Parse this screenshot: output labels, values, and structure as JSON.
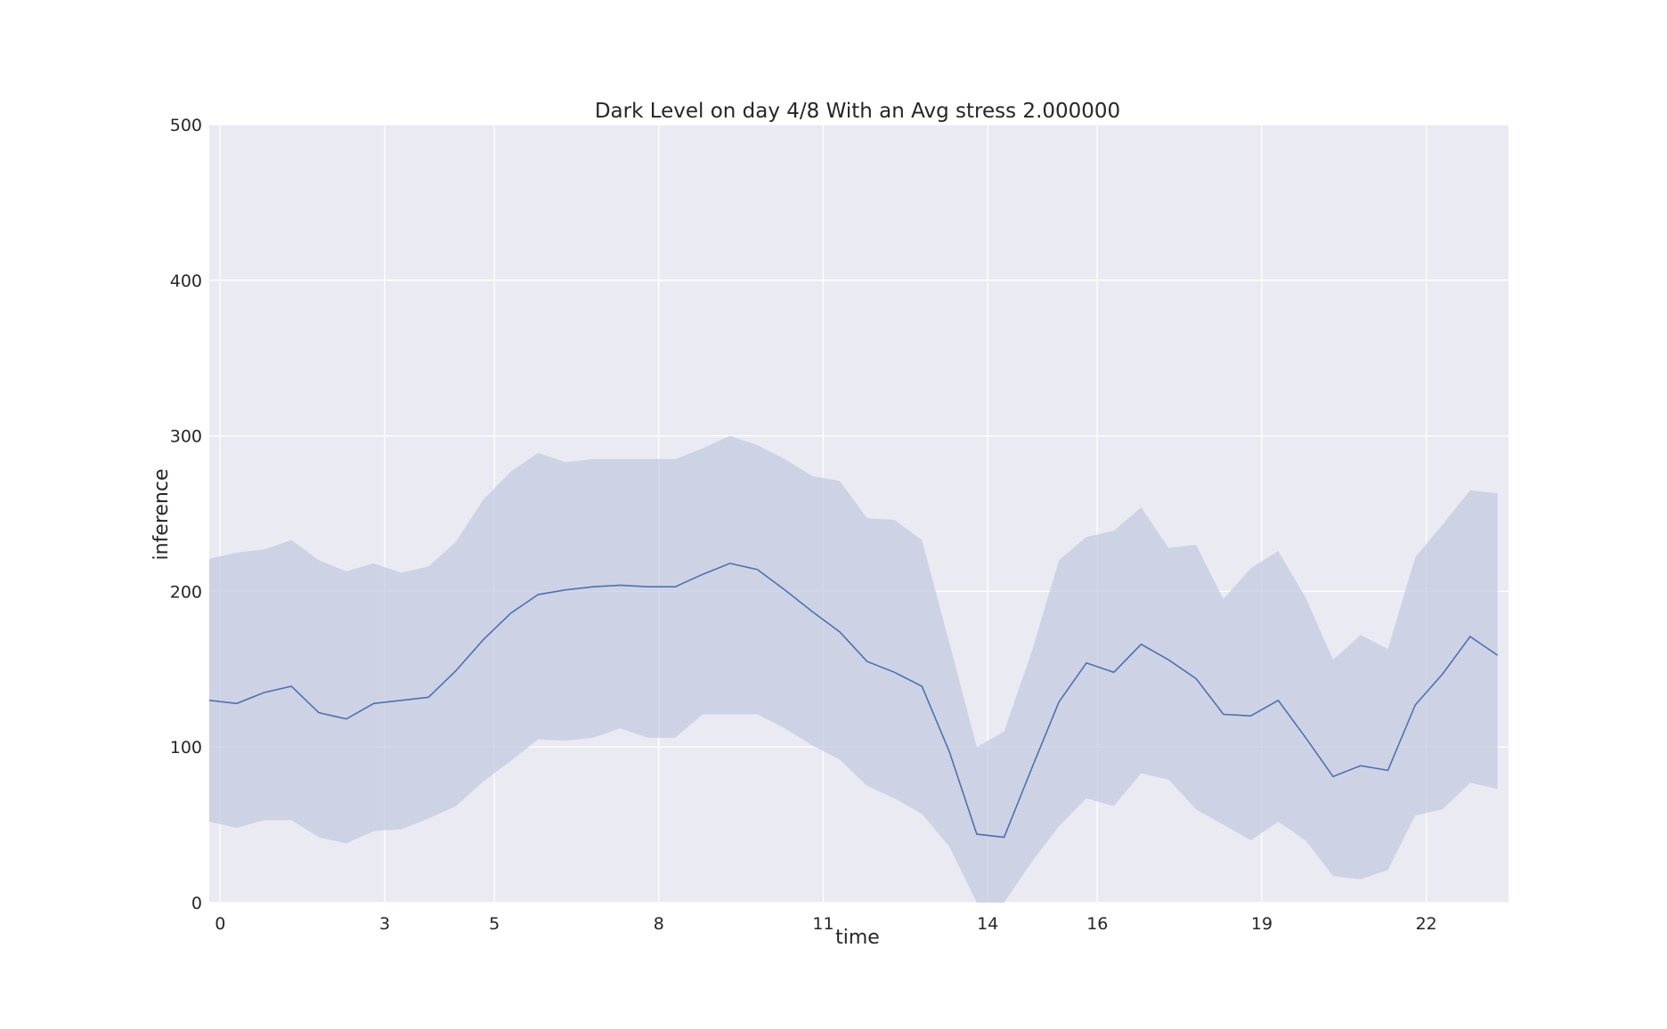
{
  "chart_data": {
    "type": "line",
    "title": "Dark Level on day 4/8 With an Avg stress 2.000000",
    "xlabel": "time",
    "ylabel": "inference",
    "xlim": [
      -0.2,
      23.5
    ],
    "ylim": [
      0,
      500
    ],
    "x_ticks": [
      0,
      3,
      5,
      8,
      11,
      14,
      16,
      19,
      22
    ],
    "y_ticks": [
      0,
      100,
      200,
      300,
      400,
      500
    ],
    "grid": true,
    "background": "#eaeaf2",
    "grid_color": "#ffffff",
    "line_color": "#4c72b0",
    "band_color": "#c3cbe0",
    "series": [
      {
        "x": [
          -0.2,
          0.3,
          0.8,
          1.3,
          1.8,
          2.3,
          2.8,
          3.3,
          3.8,
          4.3,
          4.8,
          5.3,
          5.8,
          6.3,
          6.8,
          7.3,
          7.8,
          8.3,
          8.8,
          9.3,
          9.8,
          10.3,
          10.8,
          11.3,
          11.8,
          12.3,
          12.8,
          13.3,
          13.8,
          14.3,
          14.8,
          15.3,
          15.8,
          16.3,
          16.8,
          17.3,
          17.8,
          18.3,
          18.8,
          19.3,
          19.8,
          20.3,
          20.8,
          21.3,
          21.8,
          22.3,
          22.8,
          23.3
        ],
        "values": [
          130,
          128,
          135,
          139,
          122,
          118,
          128,
          130,
          132,
          149,
          169,
          186,
          198,
          201,
          203,
          204,
          203,
          203,
          211,
          218,
          214,
          201,
          187,
          174,
          155,
          148,
          139,
          97,
          44,
          42,
          86,
          129,
          154,
          148,
          166,
          156,
          144,
          121,
          120,
          130,
          106,
          81,
          88,
          85,
          127,
          147,
          171,
          159
        ],
        "lower": [
          52,
          48,
          53,
          53,
          42,
          38,
          46,
          47,
          54,
          62,
          78,
          91,
          105,
          104,
          106,
          112,
          106,
          106,
          121,
          121,
          121,
          112,
          101,
          92,
          75,
          67,
          57,
          36,
          0,
          0,
          26,
          49,
          67,
          62,
          83,
          79,
          60,
          50,
          40,
          52,
          40,
          17,
          15,
          21,
          56,
          60,
          77,
          73
        ],
        "upper": [
          221,
          225,
          227,
          233,
          220,
          213,
          218,
          212,
          216,
          232,
          259,
          277,
          289,
          283,
          285,
          285,
          285,
          285,
          292,
          300,
          294,
          285,
          274,
          271,
          247,
          246,
          233,
          167,
          100,
          110,
          161,
          220,
          235,
          239,
          254,
          228,
          230,
          195,
          215,
          226,
          196,
          156,
          172,
          163,
          222,
          243,
          265,
          263
        ]
      }
    ]
  }
}
